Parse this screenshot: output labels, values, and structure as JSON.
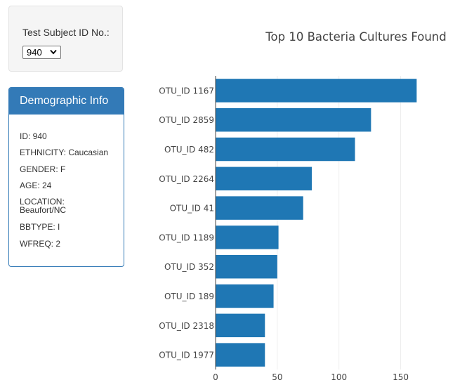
{
  "selector": {
    "label": "Test Subject ID No.:",
    "selected": "940"
  },
  "demographics": {
    "title": "Demographic Info",
    "lines": [
      "ID: 940",
      "ETHNICITY: Caucasian",
      "GENDER: F",
      "AGE: 24",
      "LOCATION: Beaufort/NC",
      "BBTYPE: I",
      "WFREQ: 2"
    ]
  },
  "colors": {
    "bar": "#1f77b4",
    "panel": "#337ab7"
  },
  "chart_data": {
    "type": "bar",
    "orientation": "horizontal",
    "title": "Top 10 Bacteria Cultures Found",
    "categories": [
      "OTU_ID 1167",
      "OTU_ID 2859",
      "OTU_ID 482",
      "OTU_ID 2264",
      "OTU_ID 41",
      "OTU_ID 1189",
      "OTU_ID 352",
      "OTU_ID 189",
      "OTU_ID 2318",
      "OTU_ID 1977"
    ],
    "values": [
      163,
      126,
      113,
      78,
      71,
      51,
      50,
      47,
      40,
      40
    ],
    "xlim": [
      0,
      175
    ],
    "xticks": [
      0,
      50,
      100,
      150
    ],
    "grid": true
  }
}
